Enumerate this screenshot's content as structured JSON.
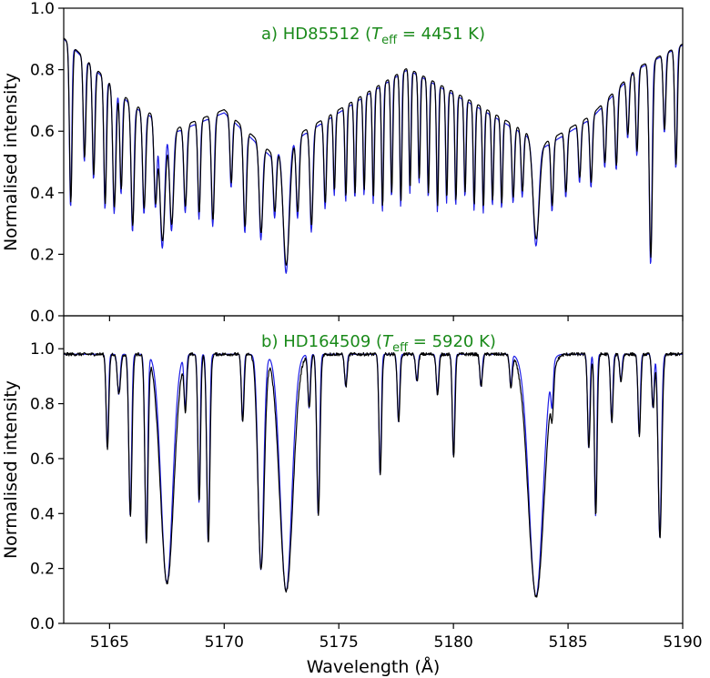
{
  "chart_data": [
    {
      "type": "line",
      "panel_title": "a) HD85512 (",
      "teff_symbol": "T",
      "teff_sub": "eff",
      "teff_value": " = 4451 K)",
      "ylabel": "Normalised intensity",
      "xlim": [
        5163,
        5190
      ],
      "ylim": [
        0.0,
        1.0
      ],
      "yticks": [
        "0.0",
        "0.2",
        "0.4",
        "0.6",
        "0.8",
        "1.0"
      ],
      "continuum": [
        [
          5163,
          0.9
        ],
        [
          5166,
          0.68
        ],
        [
          5168,
          0.6
        ],
        [
          5170,
          0.66
        ],
        [
          5172,
          0.52
        ],
        [
          5175,
          0.66
        ],
        [
          5178,
          0.8
        ],
        [
          5181,
          0.68
        ],
        [
          5184,
          0.55
        ],
        [
          5186,
          0.64
        ],
        [
          5188,
          0.8
        ],
        [
          5190,
          0.88
        ]
      ],
      "lines": [
        {
          "c": 5163.3,
          "d": 0.6,
          "w": 0.05
        },
        {
          "c": 5163.9,
          "d": 0.4,
          "w": 0.05
        },
        {
          "c": 5164.3,
          "d": 0.45,
          "w": 0.05
        },
        {
          "c": 5164.8,
          "d": 0.55,
          "w": 0.05
        },
        {
          "c": 5165.2,
          "d": 0.55,
          "w": 0.06
        },
        {
          "c": 5165.5,
          "d": 0.45,
          "w": 0.05
        },
        {
          "c": 5166.0,
          "d": 0.6,
          "w": 0.06
        },
        {
          "c": 5166.5,
          "d": 0.5,
          "w": 0.06
        },
        {
          "c": 5167.0,
          "d": 0.45,
          "w": 0.06
        },
        {
          "c": 5167.3,
          "d": 0.65,
          "w": 0.1
        },
        {
          "c": 5167.7,
          "d": 0.55,
          "w": 0.08
        },
        {
          "c": 5168.3,
          "d": 0.45,
          "w": 0.06
        },
        {
          "c": 5168.9,
          "d": 0.5,
          "w": 0.05
        },
        {
          "c": 5169.5,
          "d": 0.55,
          "w": 0.06
        },
        {
          "c": 5170.3,
          "d": 0.35,
          "w": 0.05
        },
        {
          "c": 5170.9,
          "d": 0.55,
          "w": 0.06
        },
        {
          "c": 5171.6,
          "d": 0.55,
          "w": 0.07
        },
        {
          "c": 5172.2,
          "d": 0.4,
          "w": 0.06
        },
        {
          "c": 5172.7,
          "d": 0.75,
          "w": 0.12
        },
        {
          "c": 5173.2,
          "d": 0.45,
          "w": 0.06
        },
        {
          "c": 5173.8,
          "d": 0.55,
          "w": 0.06
        },
        {
          "c": 5174.4,
          "d": 0.45,
          "w": 0.05
        },
        {
          "c": 5174.8,
          "d": 0.4,
          "w": 0.04
        },
        {
          "c": 5175.3,
          "d": 0.45,
          "w": 0.04
        },
        {
          "c": 5175.7,
          "d": 0.45,
          "w": 0.04
        },
        {
          "c": 5176.1,
          "d": 0.45,
          "w": 0.04
        },
        {
          "c": 5176.5,
          "d": 0.5,
          "w": 0.04
        },
        {
          "c": 5176.9,
          "d": 0.55,
          "w": 0.04
        },
        {
          "c": 5177.3,
          "d": 0.5,
          "w": 0.04
        },
        {
          "c": 5177.7,
          "d": 0.55,
          "w": 0.04
        },
        {
          "c": 5178.1,
          "d": 0.5,
          "w": 0.04
        },
        {
          "c": 5178.5,
          "d": 0.45,
          "w": 0.04
        },
        {
          "c": 5178.9,
          "d": 0.5,
          "w": 0.04
        },
        {
          "c": 5179.3,
          "d": 0.55,
          "w": 0.04
        },
        {
          "c": 5179.7,
          "d": 0.5,
          "w": 0.04
        },
        {
          "c": 5180.1,
          "d": 0.5,
          "w": 0.04
        },
        {
          "c": 5180.5,
          "d": 0.45,
          "w": 0.04
        },
        {
          "c": 5180.9,
          "d": 0.5,
          "w": 0.04
        },
        {
          "c": 5181.3,
          "d": 0.5,
          "w": 0.04
        },
        {
          "c": 5181.7,
          "d": 0.45,
          "w": 0.04
        },
        {
          "c": 5182.1,
          "d": 0.45,
          "w": 0.04
        },
        {
          "c": 5182.6,
          "d": 0.4,
          "w": 0.05
        },
        {
          "c": 5183.0,
          "d": 0.35,
          "w": 0.05
        },
        {
          "c": 5183.6,
          "d": 0.6,
          "w": 0.12
        },
        {
          "c": 5184.3,
          "d": 0.4,
          "w": 0.05
        },
        {
          "c": 5184.9,
          "d": 0.35,
          "w": 0.05
        },
        {
          "c": 5185.5,
          "d": 0.3,
          "w": 0.05
        },
        {
          "c": 5186.0,
          "d": 0.35,
          "w": 0.05
        },
        {
          "c": 5186.6,
          "d": 0.3,
          "w": 0.05
        },
        {
          "c": 5187.1,
          "d": 0.35,
          "w": 0.05
        },
        {
          "c": 5187.6,
          "d": 0.25,
          "w": 0.05
        },
        {
          "c": 5188.0,
          "d": 0.35,
          "w": 0.05
        },
        {
          "c": 5188.6,
          "d": 0.8,
          "w": 0.06
        },
        {
          "c": 5189.2,
          "d": 0.3,
          "w": 0.05
        },
        {
          "c": 5189.7,
          "d": 0.45,
          "w": 0.05
        }
      ]
    },
    {
      "type": "line",
      "panel_title": "b) HD164509 (",
      "teff_symbol": "T",
      "teff_sub": "eff",
      "teff_value": " = 5920 K)",
      "ylabel": "Normalised intensity",
      "xlabel": "Wavelength (Å)",
      "xlim": [
        5163,
        5190
      ],
      "ylim": [
        0.0,
        1.12
      ],
      "yticks": [
        "0.0",
        "0.2",
        "0.4",
        "0.6",
        "0.8",
        "1.0"
      ],
      "xticks": [
        "5165",
        "5170",
        "5175",
        "5180",
        "5185",
        "5190"
      ],
      "continuum": [
        [
          5163,
          0.98
        ],
        [
          5190,
          0.98
        ]
      ],
      "lines": [
        {
          "c": 5164.9,
          "d": 0.35,
          "w": 0.05
        },
        {
          "c": 5165.4,
          "d": 0.15,
          "w": 0.06
        },
        {
          "c": 5165.9,
          "d": 0.6,
          "w": 0.06
        },
        {
          "c": 5166.6,
          "d": 0.7,
          "w": 0.06
        },
        {
          "c": 5167.5,
          "d": 0.85,
          "w": 0.25
        },
        {
          "c": 5168.3,
          "d": 0.2,
          "w": 0.05
        },
        {
          "c": 5168.9,
          "d": 0.55,
          "w": 0.05
        },
        {
          "c": 5169.3,
          "d": 0.7,
          "w": 0.06
        },
        {
          "c": 5170.8,
          "d": 0.25,
          "w": 0.05
        },
        {
          "c": 5171.6,
          "d": 0.8,
          "w": 0.12
        },
        {
          "c": 5172.7,
          "d": 0.88,
          "w": 0.25
        },
        {
          "c": 5173.7,
          "d": 0.2,
          "w": 0.05
        },
        {
          "c": 5174.1,
          "d": 0.6,
          "w": 0.06
        },
        {
          "c": 5175.3,
          "d": 0.12,
          "w": 0.05
        },
        {
          "c": 5176.8,
          "d": 0.45,
          "w": 0.05
        },
        {
          "c": 5177.6,
          "d": 0.25,
          "w": 0.05
        },
        {
          "c": 5178.4,
          "d": 0.1,
          "w": 0.05
        },
        {
          "c": 5179.3,
          "d": 0.15,
          "w": 0.05
        },
        {
          "c": 5180.0,
          "d": 0.38,
          "w": 0.05
        },
        {
          "c": 5181.2,
          "d": 0.12,
          "w": 0.05
        },
        {
          "c": 5182.5,
          "d": 0.12,
          "w": 0.05
        },
        {
          "c": 5183.6,
          "d": 0.9,
          "w": 0.3
        },
        {
          "c": 5184.3,
          "d": 0.15,
          "w": 0.05
        },
        {
          "c": 5185.9,
          "d": 0.35,
          "w": 0.05
        },
        {
          "c": 5186.2,
          "d": 0.6,
          "w": 0.05
        },
        {
          "c": 5186.9,
          "d": 0.25,
          "w": 0.05
        },
        {
          "c": 5187.3,
          "d": 0.1,
          "w": 0.05
        },
        {
          "c": 5188.1,
          "d": 0.3,
          "w": 0.05
        },
        {
          "c": 5188.7,
          "d": 0.2,
          "w": 0.05
        },
        {
          "c": 5189.0,
          "d": 0.68,
          "w": 0.07
        }
      ]
    }
  ]
}
